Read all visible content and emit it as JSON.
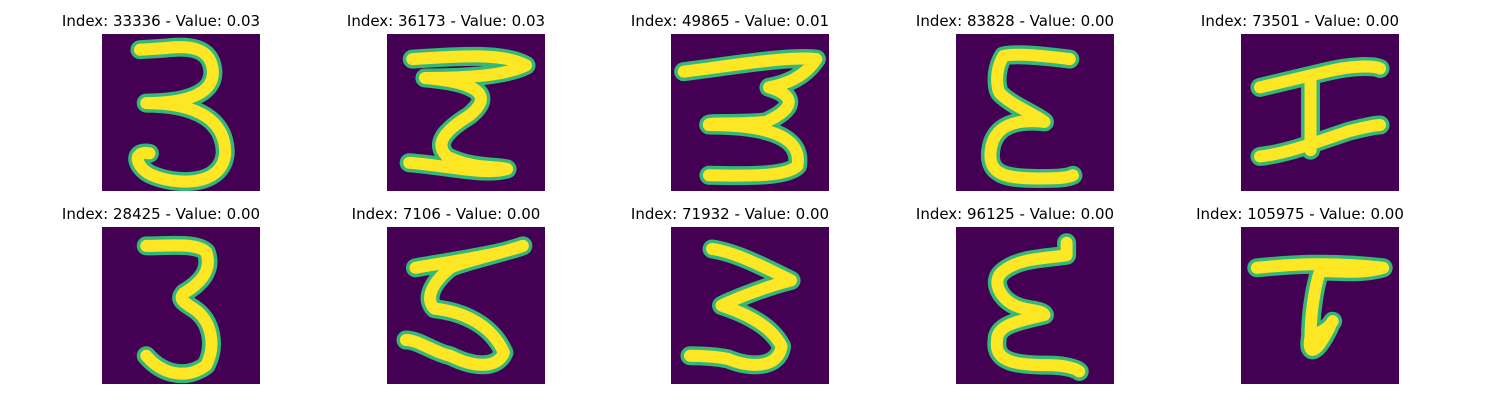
{
  "colors": {
    "background": "#440154",
    "stroke_core": "#fde725",
    "stroke_edge": "#35b779"
  },
  "panels": [
    {
      "title": "Index: 33336 - Value: 0.03",
      "glyph": "digit-three-icon"
    },
    {
      "title": "Index: 36173 - Value: 0.03",
      "glyph": "digit-three-icon"
    },
    {
      "title": "Index: 49865 - Value: 0.01",
      "glyph": "digit-three-icon"
    },
    {
      "title": "Index: 83828 - Value: 0.00",
      "glyph": "epsilon-icon"
    },
    {
      "title": "Index: 73501 - Value: 0.00",
      "glyph": "letter-i-icon"
    },
    {
      "title": "Index: 28425 - Value: 0.00",
      "glyph": "digit-three-icon"
    },
    {
      "title": "Index: 7106 - Value: 0.00",
      "glyph": "digit-five-icon"
    },
    {
      "title": "Index: 71932 - Value: 0.00",
      "glyph": "digit-three-icon"
    },
    {
      "title": "Index: 96125 - Value: 0.00",
      "glyph": "epsilon-icon"
    },
    {
      "title": "Index: 105975 - Value: 0.00",
      "glyph": "letter-t-icon"
    }
  ]
}
